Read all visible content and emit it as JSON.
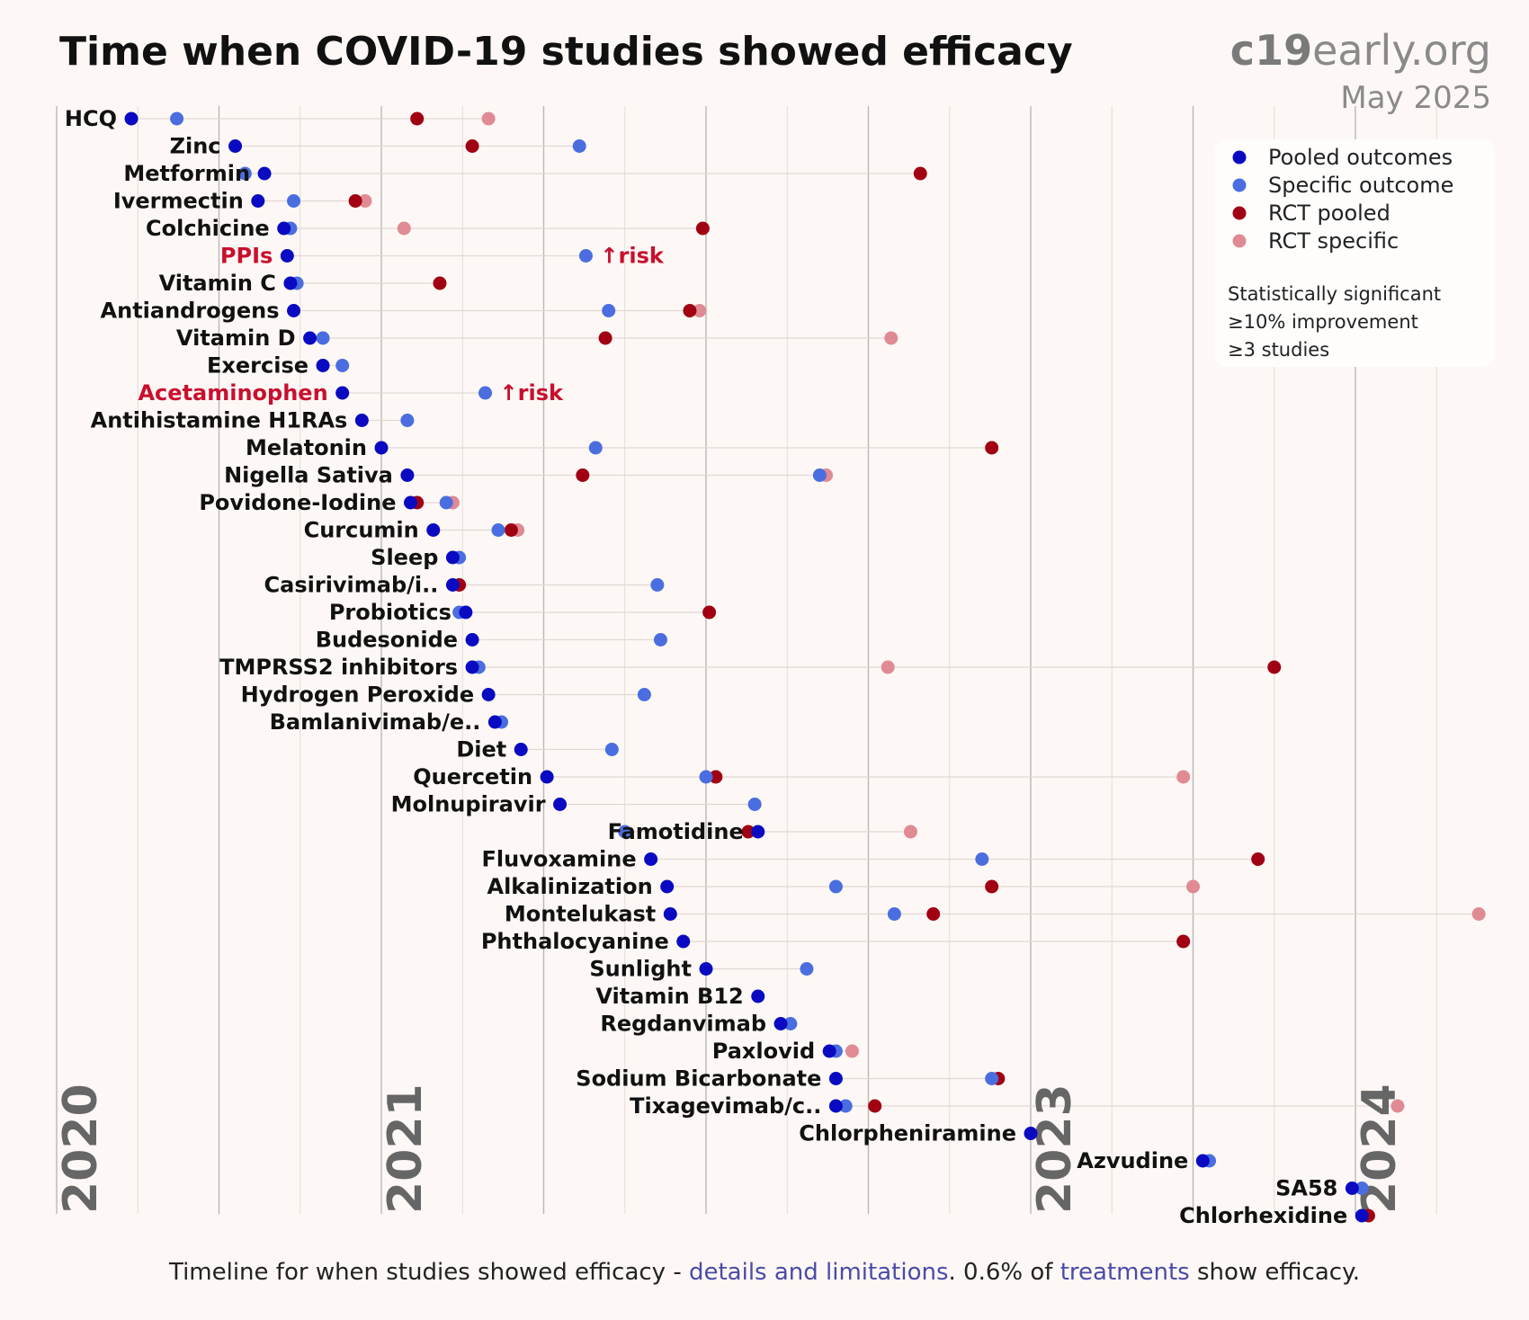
{
  "title": "Time when COVID-19 studies showed efficacy",
  "brand": {
    "bold": "c19",
    "light": "early.org",
    "date": "May 2025"
  },
  "colors": {
    "pooled": "#0a0ac2",
    "specific": "#4a6ee0",
    "rct_pooled": "#a00012",
    "rct_specific": "#e08a94",
    "warn": "#c8102e",
    "grid": "#bdbdbd"
  },
  "legend": {
    "items": [
      {
        "key": "pooled",
        "label": "Pooled outcomes"
      },
      {
        "key": "specific",
        "label": "Specific outcome"
      },
      {
        "key": "rct_pooled",
        "label": "RCT pooled"
      },
      {
        "key": "rct_specific",
        "label": "RCT specific"
      }
    ],
    "notes": [
      "Statistically significant",
      "≥10% improvement",
      "≥3 studies"
    ]
  },
  "footer": {
    "prefix": "Timeline for when studies showed efficacy - ",
    "link1": "details and limitations",
    "middle": ". 0.6% of ",
    "link2": "treatments",
    "suffix": " show efficacy."
  },
  "chart_data": {
    "type": "scatter",
    "title": "Time when COVID-19 studies showed efficacy",
    "x_axis": {
      "ticks": [
        "2020",
        "2021",
        "2023",
        "2024"
      ],
      "range_years": [
        2020.0,
        2024.4
      ]
    },
    "series": [
      {
        "key": "pooled",
        "name": "Pooled outcomes"
      },
      {
        "key": "specific",
        "name": "Specific outcome"
      },
      {
        "key": "rct_pooled",
        "name": "RCT pooled"
      },
      {
        "key": "rct_specific",
        "name": "RCT specific"
      }
    ],
    "rows": [
      {
        "name": "HCQ",
        "pooled": 2020.23,
        "specific": 2020.37,
        "rct_pooled": 2021.11,
        "rct_specific": 2021.33
      },
      {
        "name": "Zinc",
        "pooled": 2020.55,
        "specific": 2021.61,
        "rct_pooled": 2021.28
      },
      {
        "name": "Metformin",
        "pooled": 2020.64,
        "specific": 2020.58,
        "rct_pooled": 2022.66
      },
      {
        "name": "Ivermectin",
        "pooled": 2020.62,
        "specific": 2020.73,
        "rct_pooled": 2020.92,
        "rct_specific": 2020.95
      },
      {
        "name": "Colchicine",
        "pooled": 2020.7,
        "specific": 2020.72,
        "rct_pooled": 2021.99,
        "rct_specific": 2021.07
      },
      {
        "name": "PPIs",
        "pooled": 2020.71,
        "specific": 2021.63,
        "risk": true
      },
      {
        "name": "Vitamin C",
        "pooled": 2020.72,
        "specific": 2020.74,
        "rct_pooled": 2021.18
      },
      {
        "name": "Antiandrogens",
        "pooled": 2020.73,
        "specific": 2021.7,
        "rct_pooled": 2021.95,
        "rct_specific": 2021.98
      },
      {
        "name": "Vitamin D",
        "pooled": 2020.78,
        "specific": 2020.82,
        "rct_pooled": 2021.69,
        "rct_specific": 2022.57
      },
      {
        "name": "Exercise",
        "pooled": 2020.82,
        "specific": 2020.88
      },
      {
        "name": "Acetaminophen",
        "pooled": 2020.88,
        "specific": 2021.32,
        "risk": true
      },
      {
        "name": "Antihistamine H1RAs",
        "pooled": 2020.94,
        "specific": 2021.08
      },
      {
        "name": "Melatonin",
        "pooled": 2021.0,
        "specific": 2021.66,
        "rct_pooled": 2022.88
      },
      {
        "name": "Nigella Sativa",
        "pooled": 2021.08,
        "specific": 2022.35,
        "rct_pooled": 2021.62,
        "rct_specific": 2022.37
      },
      {
        "name": "Povidone-Iodine",
        "pooled": 2021.09,
        "specific": 2021.2,
        "rct_pooled": 2021.11,
        "rct_specific": 2021.22
      },
      {
        "name": "Curcumin",
        "pooled": 2021.16,
        "specific": 2021.36,
        "rct_pooled": 2021.4,
        "rct_specific": 2021.42
      },
      {
        "name": "Sleep",
        "pooled": 2021.22,
        "specific": 2021.24
      },
      {
        "name": "Casirivimab/i..",
        "pooled": 2021.22,
        "specific": 2021.85,
        "rct_pooled": 2021.24
      },
      {
        "name": "Probiotics",
        "pooled": 2021.26,
        "specific": 2021.24,
        "rct_pooled": 2022.01
      },
      {
        "name": "Budesonide",
        "pooled": 2021.28,
        "specific": 2021.86
      },
      {
        "name": "TMPRSS2 inhibitors",
        "pooled": 2021.28,
        "specific": 2021.3,
        "rct_pooled": 2023.75,
        "rct_specific": 2022.56
      },
      {
        "name": "Hydrogen Peroxide",
        "pooled": 2021.33,
        "specific": 2021.81
      },
      {
        "name": "Bamlanivimab/e..",
        "pooled": 2021.35,
        "specific": 2021.37
      },
      {
        "name": "Diet",
        "pooled": 2021.43,
        "specific": 2021.71
      },
      {
        "name": "Quercetin",
        "pooled": 2021.51,
        "specific": 2022.0,
        "rct_pooled": 2022.03,
        "rct_specific": 2023.47
      },
      {
        "name": "Molnupiravir",
        "pooled": 2021.55,
        "specific": 2022.15
      },
      {
        "name": "Famotidine",
        "pooled": 2022.16,
        "specific": 2021.75,
        "rct_pooled": 2022.13,
        "rct_specific": 2022.63
      },
      {
        "name": "Fluvoxamine",
        "pooled": 2021.83,
        "specific": 2022.85,
        "rct_pooled": 2023.7
      },
      {
        "name": "Alkalinization",
        "pooled": 2021.88,
        "specific": 2022.4,
        "rct_pooled": 2022.88,
        "rct_specific": 2023.5
      },
      {
        "name": "Montelukast",
        "pooled": 2021.89,
        "specific": 2022.58,
        "rct_pooled": 2022.7,
        "rct_specific": 2024.38
      },
      {
        "name": "Phthalocyanine",
        "pooled": 2021.93,
        "rct_pooled": 2023.47
      },
      {
        "name": "Sunlight",
        "pooled": 2022.0,
        "specific": 2022.31
      },
      {
        "name": "Vitamin B12",
        "pooled": 2022.16
      },
      {
        "name": "Regdanvimab",
        "pooled": 2022.23,
        "specific": 2022.26
      },
      {
        "name": "Paxlovid",
        "pooled": 2022.38,
        "specific": 2022.4,
        "rct_specific": 2022.45
      },
      {
        "name": "Sodium Bicarbonate",
        "pooled": 2022.4,
        "specific": 2022.88,
        "rct_pooled": 2022.9
      },
      {
        "name": "Tixagevimab/c..",
        "pooled": 2022.4,
        "specific": 2022.43,
        "rct_pooled": 2022.52,
        "rct_specific": 2024.13
      },
      {
        "name": "Chlorpheniramine",
        "pooled": 2023.0
      },
      {
        "name": "Azvudine",
        "pooled": 2023.53,
        "specific": 2023.55
      },
      {
        "name": "SA58",
        "pooled": 2023.99,
        "specific": 2024.02
      },
      {
        "name": "Chlorhexidine",
        "pooled": 2024.02,
        "rct_pooled": 2024.04
      }
    ]
  }
}
